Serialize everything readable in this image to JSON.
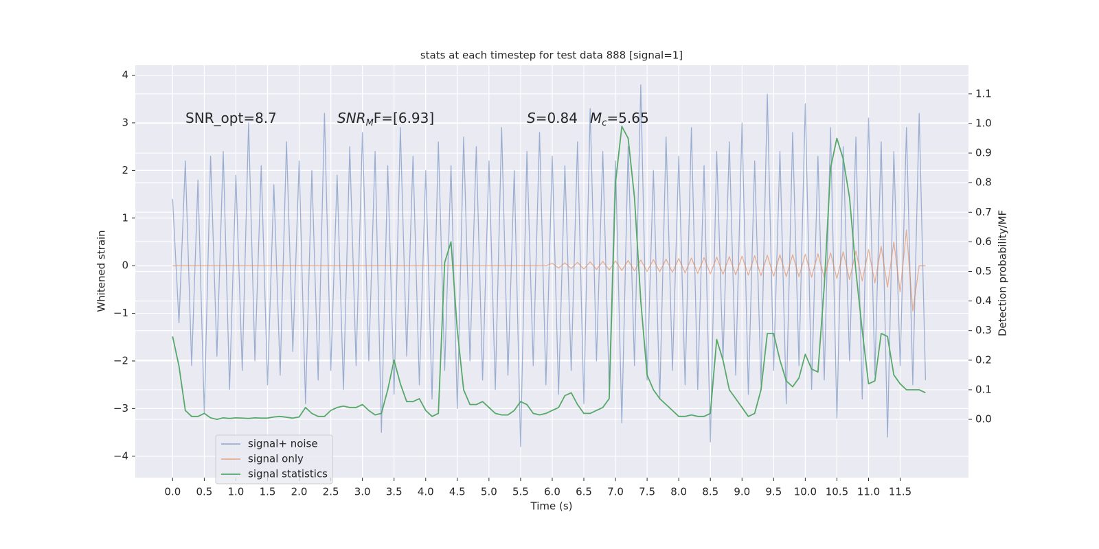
{
  "chart_data": {
    "type": "line",
    "title": "stats at each timestep for test data 888 [signal=1]",
    "xlabel": "Time (s)",
    "ylabel": "Whitened strain",
    "y2label": "Detection probability/MF",
    "annotations": [
      {
        "main": "SNR_opt=8.7"
      },
      {
        "main": "SNR",
        "sub": "M",
        "after": "F=[6.93]"
      },
      {
        "main": "S",
        "after": "=0.84"
      },
      {
        "main": "M",
        "sub": "c",
        "after": "=5.65"
      }
    ],
    "grid": true,
    "legend": "lower left",
    "xlim": [
      -0.59,
      12.58
    ],
    "ylim": [
      -4.45,
      4.21
    ],
    "y2lim": [
      -0.197,
      1.197
    ],
    "xticks": [
      {
        "value": 0,
        "label": "0.0"
      },
      {
        "value": 0.5,
        "label": "0.5"
      },
      {
        "value": 1,
        "label": "1.0"
      },
      {
        "value": 1.5,
        "label": "1.5"
      },
      {
        "value": 2,
        "label": "2.0"
      },
      {
        "value": 2.5,
        "label": "2.5"
      },
      {
        "value": 3,
        "label": "3.0"
      },
      {
        "value": 3.5,
        "label": "3.5"
      },
      {
        "value": 4,
        "label": "4.0"
      },
      {
        "value": 4.5,
        "label": "4.5"
      },
      {
        "value": 5,
        "label": "5.0"
      },
      {
        "value": 5.5,
        "label": "5.5"
      },
      {
        "value": 6,
        "label": "6.0"
      },
      {
        "value": 6.5,
        "label": "6.5"
      },
      {
        "value": 7,
        "label": "7.0"
      },
      {
        "value": 7.5,
        "label": "7.5"
      },
      {
        "value": 8,
        "label": "8.0"
      },
      {
        "value": 8.5,
        "label": "8.5"
      },
      {
        "value": 9,
        "label": "9.0"
      },
      {
        "value": 9.5,
        "label": "9.5"
      },
      {
        "value": 10,
        "label": "10.0"
      },
      {
        "value": 10.5,
        "label": "10.5"
      },
      {
        "value": 11,
        "label": "11.0"
      },
      {
        "value": 11.5,
        "label": "11.5"
      }
    ],
    "yticks": [
      {
        "value": -4,
        "label": "−4"
      },
      {
        "value": -3,
        "label": "−3"
      },
      {
        "value": -2,
        "label": "−2"
      },
      {
        "value": -1,
        "label": "−1"
      },
      0,
      1,
      2,
      3,
      4
    ],
    "y2ticks": [
      {
        "value": 0,
        "label": "0.0"
      },
      {
        "value": 0.1,
        "label": "0.1"
      },
      {
        "value": 0.2,
        "label": "0.2"
      },
      {
        "value": 0.3,
        "label": "0.3"
      },
      {
        "value": 0.4,
        "label": "0.4"
      },
      {
        "value": 0.5,
        "label": "0.5"
      },
      {
        "value": 0.6,
        "label": "0.6"
      },
      {
        "value": 0.7,
        "label": "0.7"
      },
      {
        "value": 0.8,
        "label": "0.8"
      },
      {
        "value": 0.9,
        "label": "0.9"
      },
      {
        "value": 1.0,
        "label": "1.0"
      },
      {
        "value": 1.1,
        "label": "1.1"
      }
    ],
    "x": [
      0,
      0.1,
      0.2,
      0.3,
      0.4,
      0.5,
      0.6,
      0.7,
      0.8,
      0.9,
      1,
      1.1,
      1.2,
      1.3,
      1.4,
      1.5,
      1.6,
      1.7,
      1.8,
      1.9,
      2,
      2.1,
      2.2,
      2.3,
      2.4,
      2.5,
      2.6,
      2.7,
      2.8,
      2.9,
      3,
      3.1,
      3.2,
      3.3,
      3.4,
      3.5,
      3.6,
      3.7,
      3.8,
      3.9,
      4,
      4.1,
      4.2,
      4.3,
      4.4,
      4.5,
      4.6,
      4.7,
      4.8,
      4.9,
      5,
      5.1,
      5.2,
      5.3,
      5.4,
      5.5,
      5.6,
      5.7,
      5.8,
      5.9,
      6,
      6.1,
      6.2,
      6.3,
      6.4,
      6.5,
      6.6,
      6.7,
      6.8,
      6.9,
      7,
      7.1,
      7.2,
      7.3,
      7.4,
      7.5,
      7.6,
      7.7,
      7.8,
      7.9,
      8,
      8.1,
      8.2,
      8.3,
      8.4,
      8.5,
      8.6,
      8.7,
      8.8,
      8.9,
      9,
      9.1,
      9.2,
      9.3,
      9.4,
      9.5,
      9.6,
      9.7,
      9.8,
      9.9,
      10,
      10.1,
      10.2,
      10.3,
      10.4,
      10.5,
      10.6,
      10.7,
      10.8,
      10.9,
      11,
      11.1,
      11.2,
      11.3,
      11.4,
      11.5,
      11.6,
      11.7,
      11.8,
      11.9
    ],
    "series": [
      {
        "name": "signal+ noise",
        "color": "#4c72b0",
        "opacity": 0.5,
        "values": [
          1.4,
          -1.2,
          2.2,
          -2.1,
          1.8,
          -3.1,
          2.3,
          -1.9,
          2.4,
          -2.6,
          1.9,
          -2.2,
          3.0,
          -2.0,
          2.1,
          -2.5,
          1.7,
          -2.3,
          2.6,
          -1.8,
          2.2,
          -2.9,
          2.0,
          -2.4,
          3.2,
          -2.2,
          1.9,
          -2.6,
          2.5,
          -2.1,
          2.8,
          -2.0,
          2.4,
          -3.5,
          2.1,
          -2.7,
          2.9,
          -1.9,
          2.3,
          -2.5,
          2.0,
          -2.8,
          2.6,
          -2.2,
          2.1,
          -3.0,
          2.7,
          -2.0,
          2.5,
          -2.4,
          2.2,
          -2.6,
          2.9,
          -2.3,
          2.0,
          -3.8,
          2.4,
          -2.1,
          2.8,
          -2.5,
          2.3,
          -2.7,
          2.1,
          -2.2,
          2.6,
          -2.9,
          3.3,
          -2.0,
          2.4,
          -2.6,
          2.2,
          -3.3,
          2.5,
          -2.1,
          3.8,
          -2.4,
          2.0,
          -2.8,
          2.7,
          -2.2,
          2.3,
          -2.5,
          2.9,
          -2.6,
          2.1,
          -3.7,
          2.4,
          -2.0,
          2.6,
          -2.3,
          3.0,
          -2.7,
          2.2,
          -2.5,
          3.6,
          -2.2,
          2.4,
          -2.9,
          2.8,
          -2.1,
          3.4,
          -2.6,
          2.3,
          -2.4,
          2.9,
          -3.2,
          2.5,
          -2.0,
          2.7,
          -2.8,
          3.1,
          -2.3,
          2.6,
          -3.6,
          2.4,
          -2.1,
          2.9,
          -2.5,
          3.2,
          -2.4
        ]
      },
      {
        "name": "signal only",
        "color": "#dd8452",
        "opacity": 0.6,
        "values": [
          0,
          0,
          0,
          0,
          0,
          0,
          0,
          0,
          0,
          0,
          0,
          0,
          0,
          0,
          0,
          0,
          0,
          0,
          0,
          0,
          0,
          0,
          0,
          0,
          0,
          0,
          0,
          0,
          0,
          0,
          0,
          0,
          0,
          0,
          0,
          0,
          0,
          0,
          0,
          0,
          0,
          0,
          0,
          0,
          0,
          0,
          0,
          0,
          0,
          0,
          0,
          0,
          0,
          0,
          0,
          0,
          0,
          0,
          0,
          0,
          0.05,
          -0.05,
          0.06,
          -0.06,
          0.07,
          -0.07,
          0.08,
          -0.08,
          0.09,
          -0.09,
          0.1,
          -0.1,
          0.11,
          -0.11,
          0.12,
          -0.12,
          0.13,
          -0.13,
          0.14,
          -0.14,
          0.15,
          -0.15,
          0.16,
          -0.16,
          0.17,
          -0.17,
          0.18,
          -0.18,
          0.19,
          -0.19,
          0.2,
          -0.2,
          0.21,
          -0.21,
          0.22,
          -0.22,
          0.23,
          -0.23,
          0.23,
          -0.23,
          0.24,
          -0.24,
          0.25,
          -0.25,
          0.27,
          -0.27,
          0.29,
          -0.29,
          0.31,
          -0.32,
          0.34,
          -0.36,
          0.4,
          -0.45,
          0.5,
          -0.55,
          0.75,
          -0.95,
          0,
          0
        ]
      },
      {
        "name": "signal statistics",
        "color": "#55a868",
        "axis": "y2",
        "values": [
          0.28,
          0.18,
          0.03,
          0.01,
          0.01,
          0.02,
          0.005,
          0,
          0.005,
          0.003,
          0.005,
          0.004,
          0.003,
          0.005,
          0.004,
          0.004,
          0.008,
          0.01,
          0.007,
          0.004,
          0.008,
          0.04,
          0.02,
          0.01,
          0.01,
          0.03,
          0.04,
          0.045,
          0.04,
          0.04,
          0.05,
          0.03,
          0.015,
          0.02,
          0.1,
          0.2,
          0.12,
          0.06,
          0.06,
          0.07,
          0.03,
          0.01,
          0.02,
          0.53,
          0.6,
          0.3,
          0.1,
          0.05,
          0.05,
          0.06,
          0.04,
          0.02,
          0.015,
          0.015,
          0.03,
          0.06,
          0.05,
          0.02,
          0.015,
          0.02,
          0.03,
          0.04,
          0.08,
          0.09,
          0.05,
          0.02,
          0.02,
          0.03,
          0.04,
          0.07,
          0.8,
          0.99,
          0.95,
          0.75,
          0.4,
          0.15,
          0.1,
          0.07,
          0.05,
          0.03,
          0.01,
          0.01,
          0.015,
          0.01,
          0.01,
          0.02,
          0.27,
          0.2,
          0.1,
          0.07,
          0.04,
          0.01,
          0.02,
          0.1,
          0.29,
          0.29,
          0.2,
          0.13,
          0.11,
          0.14,
          0.22,
          0.17,
          0.16,
          0.45,
          0.85,
          0.95,
          0.88,
          0.75,
          0.5,
          0.3,
          0.12,
          0.13,
          0.29,
          0.28,
          0.15,
          0.12,
          0.1,
          0.1,
          0.1,
          0.09
        ]
      }
    ]
  }
}
